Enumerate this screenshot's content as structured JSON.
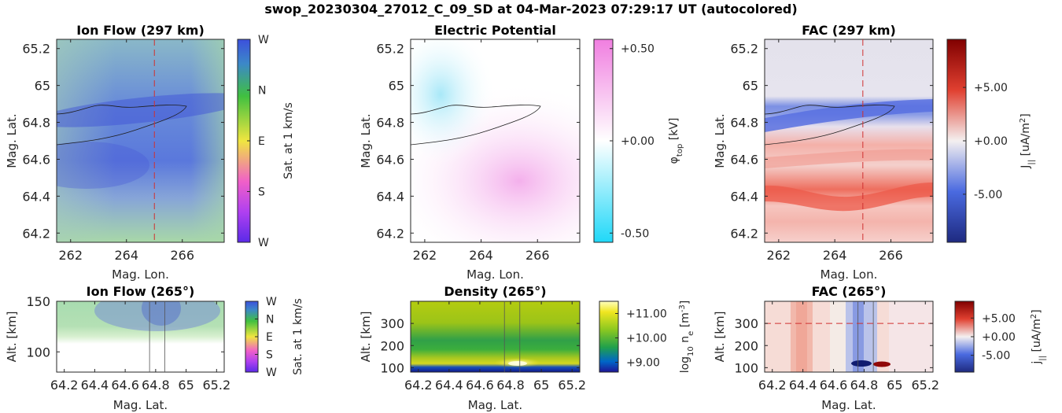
{
  "figure": {
    "title": "swop_20230304_27012_C_09_SD at 04-Mar-2023 07:29:17 UT (autocolored)"
  },
  "colors": {
    "ion_flow_cmap": [
      "#5a2ae8",
      "#b040f0",
      "#f060c8",
      "#f0e640",
      "#4cc84c",
      "#3c50dc"
    ],
    "potential_neg": "#20d8f8",
    "potential_pos": "#f0a0e8",
    "fac_neg": "#1e2a80",
    "fac_pos": "#800000",
    "density_cmap": [
      "#1e1496",
      "#0066c8",
      "#20a04c",
      "#8cc820",
      "#f0e620",
      "#ffffc0"
    ],
    "marker_line": "#d03030"
  },
  "chart_data": [
    {
      "id": "ion-flow-top",
      "type": "heatmap",
      "title": "Ion Flow (297 km)",
      "xlabel": "Mag. Lon.",
      "ylabel": "Mag. Lat.",
      "xlim": [
        261.5,
        267.5
      ],
      "ylim": [
        64.15,
        65.25
      ],
      "xticks": [
        "262",
        "264",
        "266"
      ],
      "xtick_values": [
        262,
        264,
        266
      ],
      "yticks": [
        "64.2",
        "64.4",
        "64.6",
        "64.8",
        "65",
        "65.2"
      ],
      "ytick_values": [
        64.2,
        64.4,
        64.6,
        64.8,
        65.0,
        65.2
      ],
      "marker_lon": 265.0,
      "colorbar": {
        "label": "Sat. at 1 km/s",
        "ticks": [
          "W",
          "N",
          "E",
          "S",
          "W"
        ],
        "tick_fractions": [
          1.0,
          0.75,
          0.5,
          0.25,
          0.0
        ]
      }
    },
    {
      "id": "potential-top",
      "type": "heatmap",
      "title": "Electric Potential",
      "xlabel": "Mag. Lon.",
      "ylabel": "Mag. Lat.",
      "xlim": [
        261.5,
        267.5
      ],
      "ylim": [
        64.15,
        65.25
      ],
      "xticks": [
        "262",
        "264",
        "266"
      ],
      "xtick_values": [
        262,
        264,
        266
      ],
      "yticks": [
        "64.2",
        "64.4",
        "64.6",
        "64.8",
        "65",
        "65.2"
      ],
      "ytick_values": [
        64.2,
        64.4,
        64.6,
        64.8,
        65.0,
        65.2
      ],
      "colorbar": {
        "label_main": "φ",
        "label_sub": "top",
        "label_unit": " [kV]",
        "ticks": [
          "+0.50",
          "+0.00",
          "-0.50"
        ],
        "tick_values": [
          0.5,
          0.0,
          -0.5
        ],
        "range": [
          -0.55,
          0.55
        ]
      }
    },
    {
      "id": "fac-top",
      "type": "heatmap",
      "title": "FAC (297 km)",
      "xlabel": "Mag. Lon.",
      "ylabel": "Mag. Lat.",
      "xlim": [
        261.5,
        267.5
      ],
      "ylim": [
        64.15,
        65.25
      ],
      "xticks": [
        "262",
        "264",
        "266"
      ],
      "xtick_values": [
        262,
        264,
        266
      ],
      "yticks": [
        "64.2",
        "64.4",
        "64.6",
        "64.8",
        "65",
        "65.2"
      ],
      "ytick_values": [
        64.2,
        64.4,
        64.6,
        64.8,
        65.0,
        65.2
      ],
      "marker_lon": 265.0,
      "colorbar": {
        "label_main": "J",
        "label_sub": "||",
        "label_unit": " [uA/m",
        "label_sup": "2",
        "label_end": "]",
        "ticks": [
          "+5.00",
          "+0.00",
          "-5.00"
        ],
        "tick_values": [
          5.0,
          0.0,
          -5.0
        ],
        "range": [
          -9.5,
          9.5
        ]
      }
    },
    {
      "id": "ion-flow-bottom",
      "type": "heatmap",
      "title": "Ion Flow (265°)",
      "xlabel": "Mag. Lat.",
      "ylabel": "Alt. [km]",
      "xlim": [
        64.15,
        65.25
      ],
      "ylim": [
        80,
        150
      ],
      "xticks": [
        "64.2",
        "64.4",
        "64.6",
        "64.8",
        "65",
        "65.2"
      ],
      "xtick_values": [
        64.2,
        64.4,
        64.6,
        64.8,
        65.0,
        65.2
      ],
      "yticks": [
        "100",
        "150"
      ],
      "ytick_values": [
        100,
        150
      ],
      "boundary_lats": [
        64.76,
        64.86
      ],
      "colorbar": {
        "label": "Sat. at 1 km/s",
        "ticks": [
          "W",
          "N",
          "E",
          "S",
          "W"
        ],
        "tick_fractions": [
          1.0,
          0.75,
          0.5,
          0.25,
          0.0
        ]
      }
    },
    {
      "id": "density-bottom",
      "type": "heatmap",
      "title": "Density (265°)",
      "xlabel": "Mag. Lat.",
      "ylabel": "Alt. [km]",
      "xlim": [
        64.15,
        65.25
      ],
      "ylim": [
        80,
        400
      ],
      "xticks": [
        "64.2",
        "64.4",
        "64.6",
        "64.8",
        "65",
        "65.2"
      ],
      "xtick_values": [
        64.2,
        64.4,
        64.6,
        64.8,
        65.0,
        65.2
      ],
      "yticks": [
        "100",
        "200",
        "300"
      ],
      "ytick_values": [
        100,
        200,
        300
      ],
      "boundary_lats": [
        64.76,
        64.86
      ],
      "colorbar": {
        "label_pre": "log",
        "label_sub": "10",
        "label_mid": " n",
        "label_sub2": "e",
        "label_unit": " [m",
        "label_sup": "-3",
        "label_end": "]",
        "ticks": [
          "+11.00",
          "+10.00",
          "+9.00"
        ],
        "tick_values": [
          11.0,
          10.0,
          9.0
        ],
        "range": [
          8.6,
          11.5
        ]
      }
    },
    {
      "id": "fac-bottom",
      "type": "heatmap",
      "title": "FAC (265°)",
      "xlabel": "Mag. Lat.",
      "ylabel": "Alt. [km]",
      "xlim": [
        64.15,
        65.25
      ],
      "ylim": [
        80,
        400
      ],
      "xticks": [
        "64.2",
        "64.4",
        "64.6",
        "64.8",
        "65",
        "65.2"
      ],
      "xtick_values": [
        64.2,
        64.4,
        64.6,
        64.8,
        65.0,
        65.2
      ],
      "yticks": [
        "100",
        "200",
        "300"
      ],
      "ytick_values": [
        100,
        200,
        300
      ],
      "boundary_lats": [
        64.76,
        64.86
      ],
      "marker_alt": 300,
      "colorbar": {
        "label_main": "j",
        "label_sub": "||",
        "label_unit": " [uA/m",
        "label_sup": "2",
        "label_end": "]",
        "ticks": [
          "+5.00",
          "+0.00",
          "-5.00"
        ],
        "tick_values": [
          5.0,
          0.0,
          -5.0
        ],
        "range": [
          -9.5,
          9.5
        ]
      }
    }
  ]
}
